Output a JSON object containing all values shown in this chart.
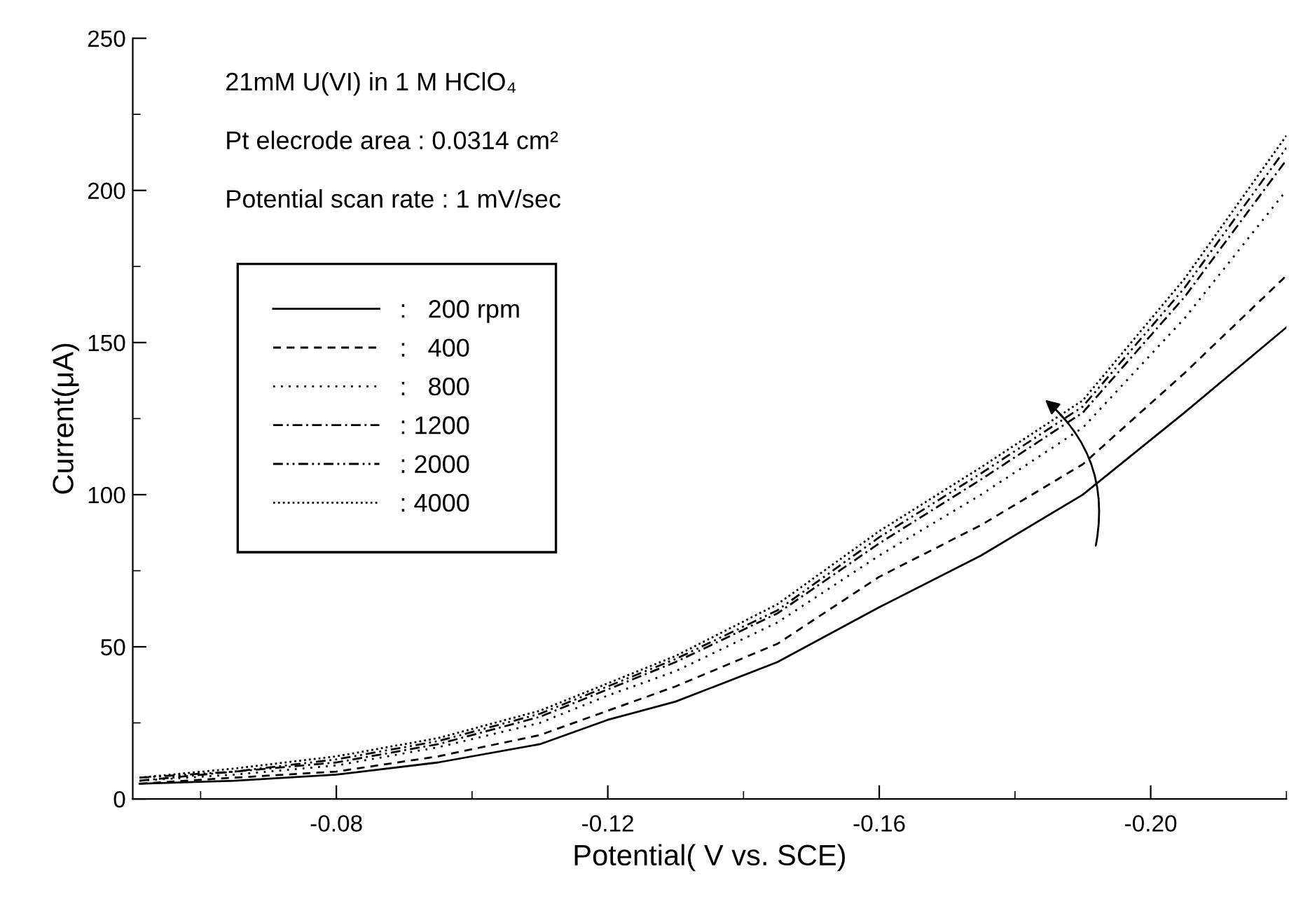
{
  "chart_data": {
    "type": "line",
    "xlabel": "Potential( V vs. SCE)",
    "ylabel": "Current(μA)",
    "annotations": [
      "21mM U(VI) in 1 M HClO₄",
      "Pt elecrode area : 0.0314 cm²",
      "Potential scan rate : 1 mV/sec"
    ],
    "x": [
      -0.051,
      -0.065,
      -0.08,
      -0.095,
      -0.11,
      -0.12,
      -0.13,
      -0.145,
      -0.16,
      -0.175,
      -0.19,
      -0.205,
      -0.22
    ],
    "xlim": [
      -0.05,
      -0.22
    ],
    "xticks": [
      -0.08,
      -0.12,
      -0.16,
      {
        "value": -0.2,
        "label": "-0.20"
      }
    ],
    "ylim": [
      0,
      250
    ],
    "yticks": [
      0,
      50,
      100,
      150,
      200,
      250
    ],
    "grid": false,
    "legend": "top left",
    "marker": "none",
    "series": [
      {
        "name": ":   200 rpm",
        "color": "#000000",
        "line_style": "solid",
        "values": [
          5,
          6,
          8,
          12,
          18,
          26,
          32,
          45,
          63,
          80,
          100,
          127,
          155
        ]
      },
      {
        "name": ":   400",
        "color": "#000000",
        "line_style": "dashed",
        "values": [
          5,
          7,
          9,
          14,
          21,
          29,
          37,
          51,
          73,
          90,
          110,
          140,
          172
        ]
      },
      {
        "name": ":   800",
        "color": "#000000",
        "line_style": "dotted",
        "values": [
          6,
          8,
          11,
          17,
          25,
          34,
          42,
          58,
          80,
          100,
          122,
          158,
          200
        ]
      },
      {
        "name": ": 1200",
        "color": "#000000",
        "line_style": "dashdot",
        "values": [
          6,
          9,
          12,
          18,
          27,
          36,
          45,
          61,
          84,
          105,
          127,
          165,
          210
        ]
      },
      {
        "name": ": 2000",
        "color": "#000000",
        "line_style": "dashdotdot",
        "values": [
          7,
          9,
          13,
          19,
          28,
          37,
          46,
          62,
          86,
          107,
          129,
          168,
          214
        ]
      },
      {
        "name": ": 4000",
        "color": "#000000",
        "line_style": "densedot",
        "values": [
          7,
          10,
          14,
          20,
          29,
          38,
          47,
          64,
          88,
          109,
          131,
          171,
          218
        ]
      }
    ]
  }
}
